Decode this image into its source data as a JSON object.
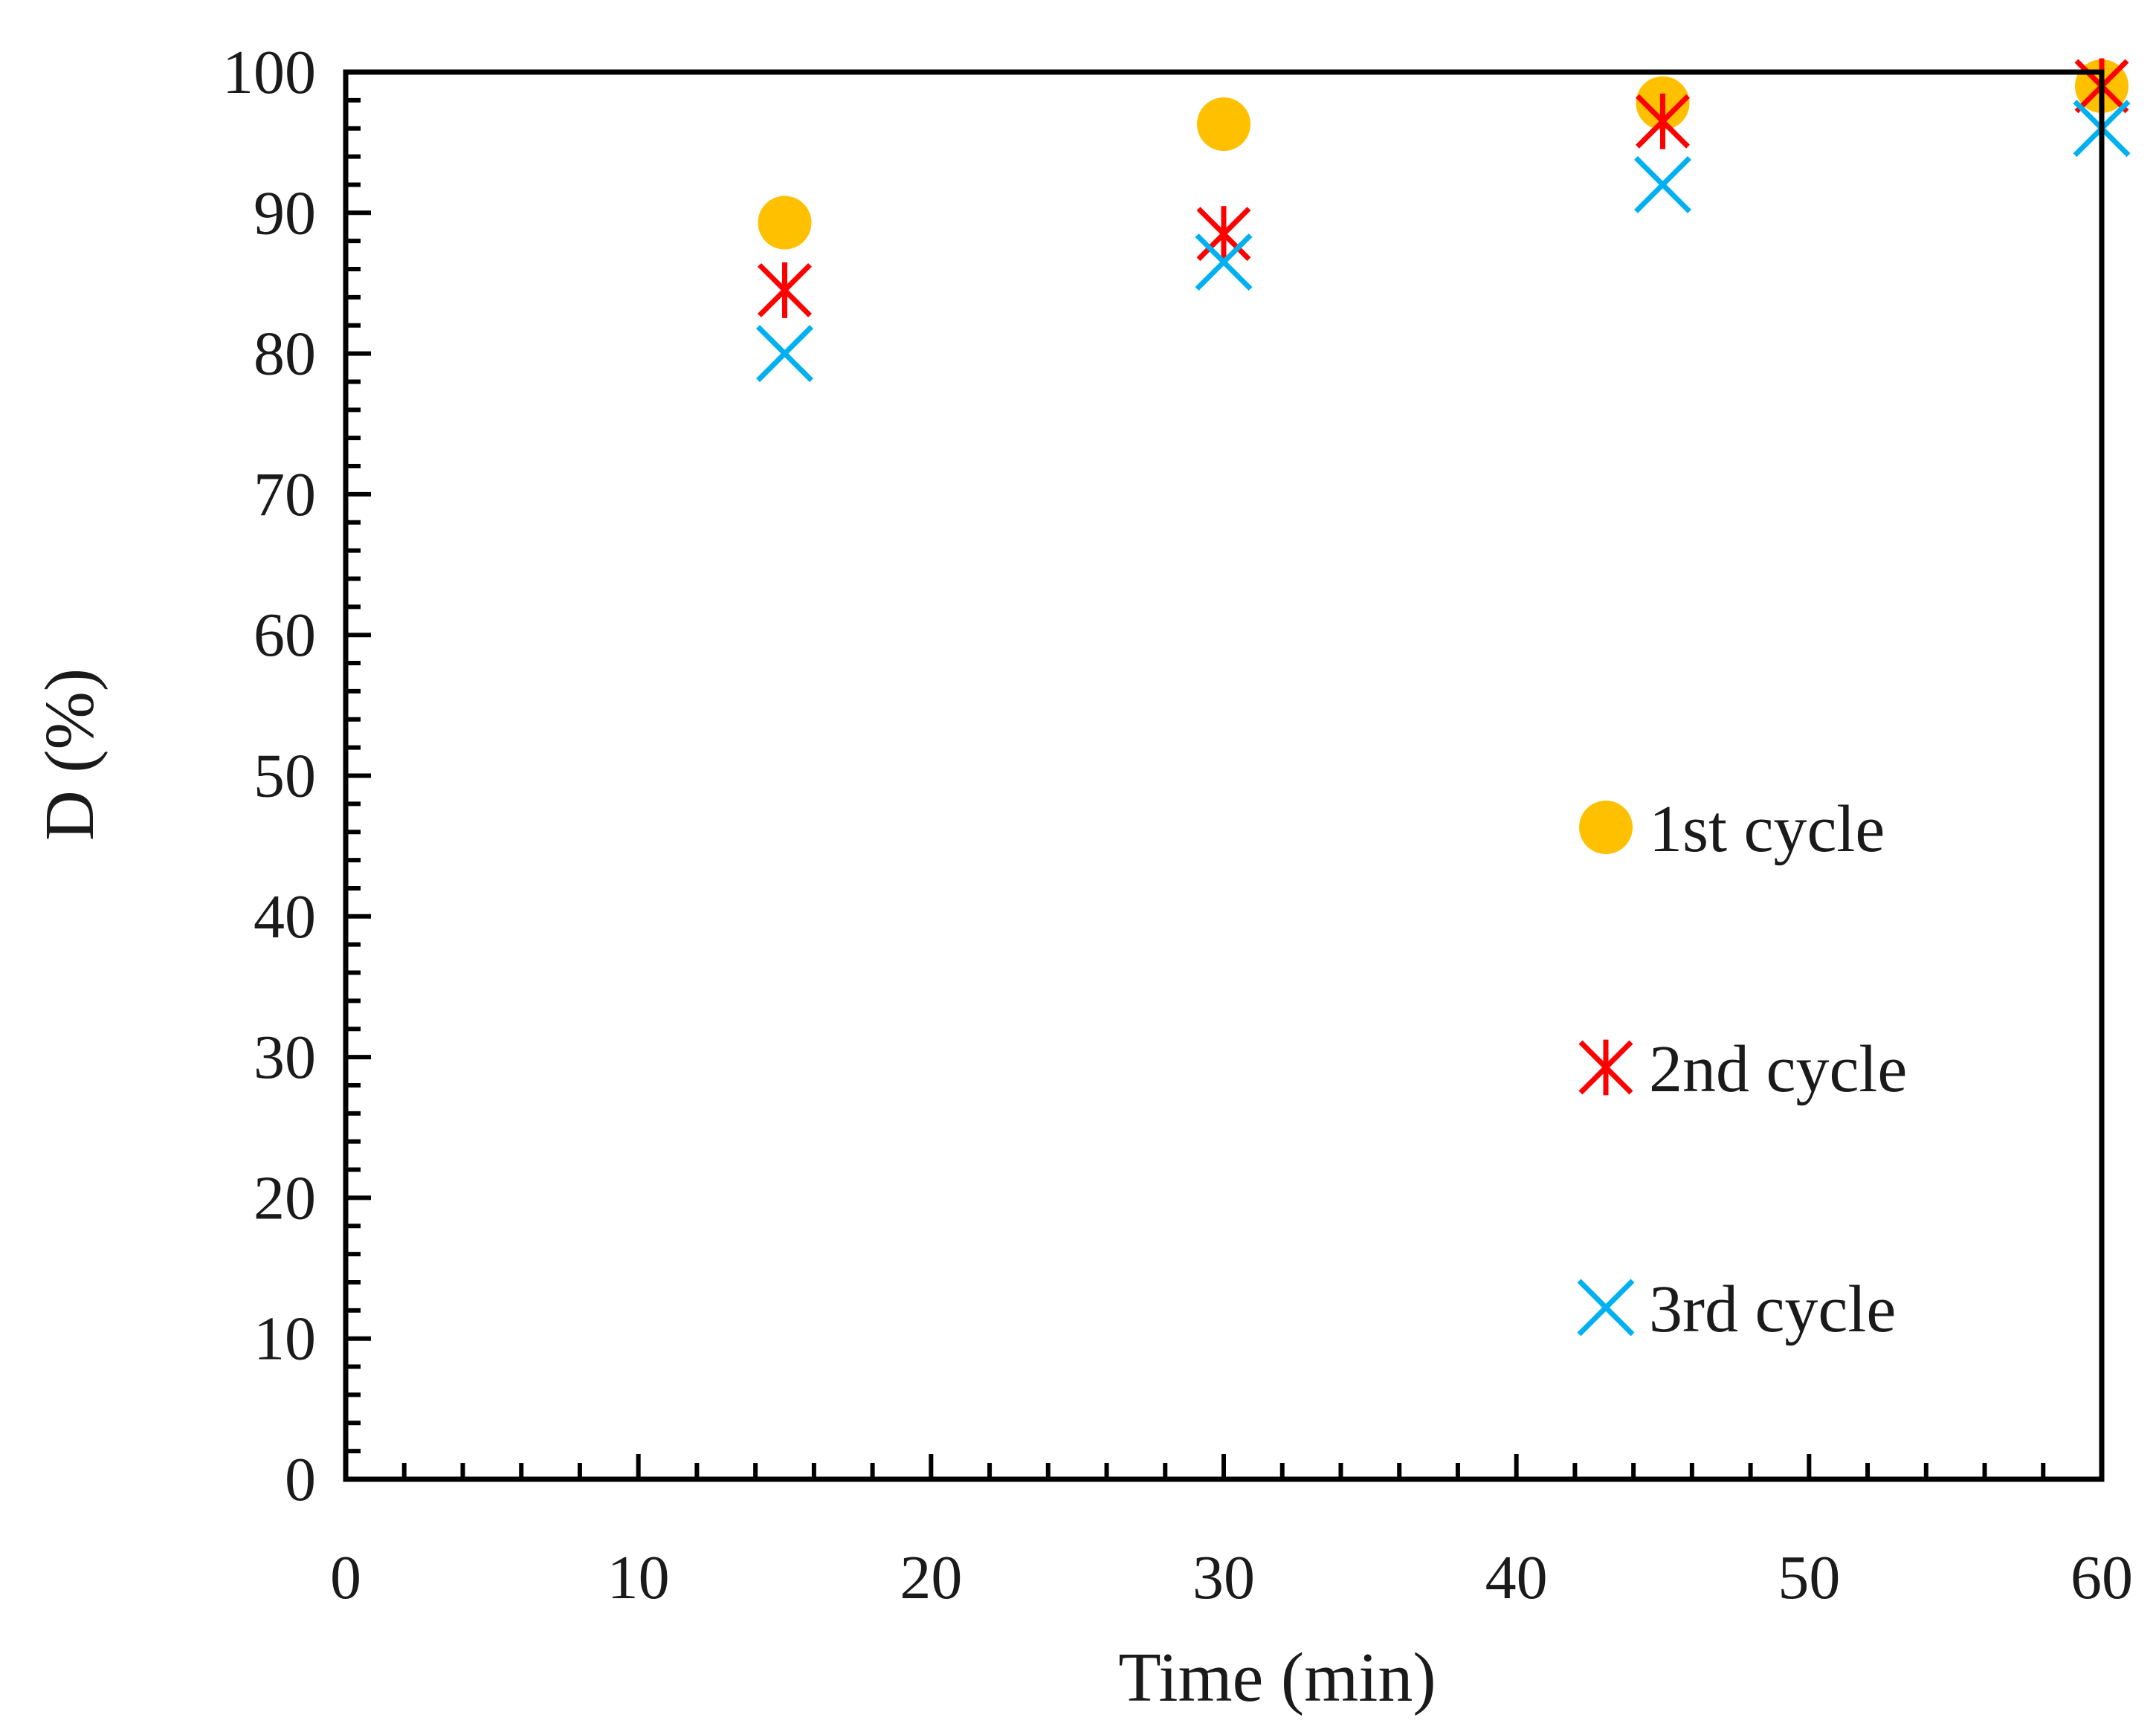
{
  "chart_data": {
    "type": "scatter",
    "title": "",
    "xlabel": "Time (min)",
    "ylabel": "D (%)",
    "xlim": [
      0,
      60
    ],
    "ylim": [
      0,
      100
    ],
    "x_ticks": [
      "0",
      "10",
      "20",
      "30",
      "40",
      "50",
      "60"
    ],
    "y_ticks": [
      "0",
      "10",
      "20",
      "30",
      "40",
      "50",
      "60",
      "70",
      "80",
      "90",
      "100"
    ],
    "grid": false,
    "legend_position": "right",
    "series": [
      {
        "name": "1st cycle",
        "marker": "circle",
        "color": "#FFC000",
        "x": [
          15,
          30,
          45,
          60
        ],
        "y": [
          89.3,
          96.3,
          97.8,
          99.0
        ]
      },
      {
        "name": "2nd cycle",
        "marker": "asterisk",
        "color": "#FF0000",
        "x": [
          15,
          30,
          45,
          60
        ],
        "y": [
          84.5,
          88.5,
          96.5,
          99.0
        ]
      },
      {
        "name": "3rd cycle",
        "marker": "x",
        "color": "#00B0F0",
        "x": [
          15,
          30,
          45,
          60
        ],
        "y": [
          80.0,
          86.5,
          92.0,
          96.0
        ]
      }
    ]
  }
}
